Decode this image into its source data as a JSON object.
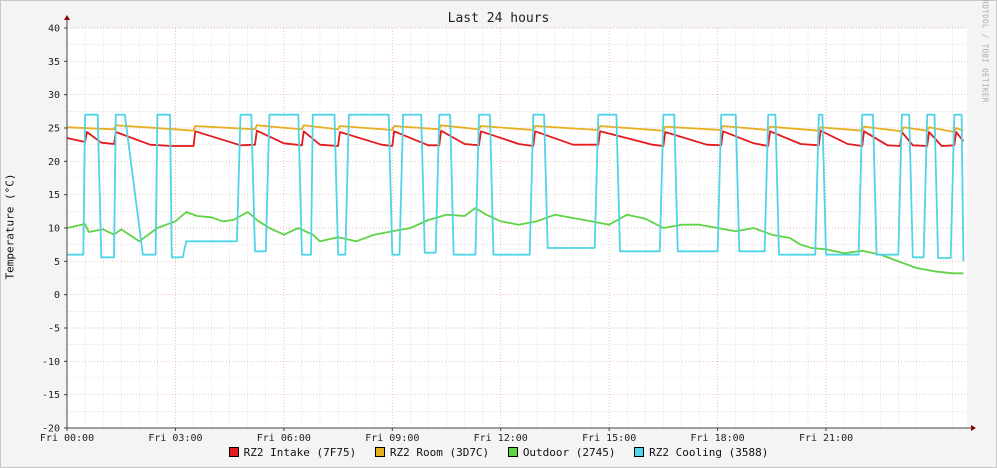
{
  "window": {
    "title": "Last 24 hours",
    "watermark": "RRDTOOL / TOBI OETIKER"
  },
  "chart_data": {
    "type": "line",
    "title": "Last 24 hours",
    "ylabel": "Temperature (°C)",
    "xlabel": "",
    "ylim": [
      -20,
      40
    ],
    "yticks": [
      -20,
      -15,
      -10,
      -5,
      0,
      5,
      10,
      15,
      20,
      25,
      30,
      35,
      40
    ],
    "xlim_hours": [
      0,
      24.9
    ],
    "xticks": [
      {
        "h": 0,
        "label": "Fri 00:00"
      },
      {
        "h": 3,
        "label": "Fri 03:00"
      },
      {
        "h": 6,
        "label": "Fri 06:00"
      },
      {
        "h": 9,
        "label": "Fri 09:00"
      },
      {
        "h": 12,
        "label": "Fri 12:00"
      },
      {
        "h": 15,
        "label": "Fri 15:00"
      },
      {
        "h": 18,
        "label": "Fri 18:00"
      },
      {
        "h": 21,
        "label": "Fri 21:00"
      }
    ],
    "grid": true,
    "legend_position": "bottom",
    "series": [
      {
        "name": "RZ2 Intake (7F75)",
        "color": "#e41a1c",
        "x": [
          0,
          0.5,
          0.55,
          0.95,
          1.3,
          1.35,
          2.3,
          2.9,
          3.2,
          3.5,
          3.55,
          4.8,
          5.2,
          5.25,
          6,
          6.5,
          6.55,
          7,
          7.5,
          7.55,
          8.7,
          9,
          9.05,
          10,
          10.3,
          10.35,
          11,
          11.4,
          11.45,
          12.5,
          12.9,
          12.95,
          14,
          14.7,
          14.75,
          16.2,
          16.5,
          16.55,
          17.7,
          18.1,
          18.15,
          19,
          19.4,
          19.45,
          20.3,
          20.8,
          20.85,
          21.6,
          22,
          22.05,
          22.7,
          23.05,
          23.1,
          23.4,
          23.8,
          23.85,
          24.2,
          24.55,
          24.6,
          24.8
        ],
        "y": [
          23.5,
          22.9,
          24.4,
          22.8,
          22.6,
          24.4,
          22.5,
          22.3,
          22.3,
          22.3,
          24.5,
          22.4,
          22.5,
          24.6,
          22.7,
          22.4,
          24.5,
          22.5,
          22.3,
          24.4,
          22.5,
          22.3,
          24.5,
          22.4,
          22.4,
          24.6,
          22.6,
          22.4,
          24.5,
          22.6,
          22.3,
          24.5,
          22.5,
          22.5,
          24.5,
          22.5,
          22.3,
          24.4,
          22.5,
          22.4,
          24.5,
          22.7,
          22.3,
          24.5,
          22.6,
          22.4,
          24.6,
          22.6,
          22.3,
          24.5,
          22.4,
          22.3,
          24.4,
          22.4,
          22.3,
          24.4,
          22.3,
          22.4,
          24.4,
          23.0
        ]
      },
      {
        "name": "RZ2 Room (3D7C)",
        "color": "#e6b020",
        "x": [
          0,
          1.3,
          1.35,
          3,
          3.5,
          3.55,
          5.2,
          5.25,
          6.5,
          6.55,
          7.5,
          7.55,
          9,
          9.05,
          10.3,
          10.35,
          11.4,
          11.45,
          12.9,
          12.95,
          14.7,
          14.75,
          16.5,
          16.55,
          18.1,
          18.15,
          19.4,
          19.45,
          20.8,
          20.85,
          22,
          22.05,
          23.1,
          23.15,
          23.8,
          23.85,
          24.55,
          24.6,
          24.8
        ],
        "y": [
          25.1,
          24.8,
          25.4,
          24.8,
          24.6,
          25.3,
          24.8,
          25.4,
          24.8,
          25.4,
          24.8,
          25.3,
          24.7,
          25.3,
          24.8,
          25.4,
          24.8,
          25.3,
          24.7,
          25.3,
          24.7,
          25.3,
          24.6,
          25.2,
          24.7,
          25.3,
          24.7,
          25.2,
          24.6,
          25.1,
          24.6,
          25.2,
          24.5,
          25.1,
          24.6,
          25.1,
          24.4,
          25.0,
          24.6
        ]
      },
      {
        "name": "Outdoor (2745)",
        "color": "#5fd346",
        "x": [
          0,
          0.5,
          0.6,
          1,
          1.3,
          1.5,
          2,
          2.5,
          3,
          3.3,
          3.6,
          4,
          4.3,
          4.6,
          5,
          5.3,
          5.6,
          6,
          6.4,
          6.8,
          7,
          7.5,
          8,
          8.5,
          9,
          9.5,
          10,
          10.5,
          11,
          11.3,
          11.6,
          12,
          12.5,
          13,
          13.5,
          14,
          14.5,
          15,
          15.5,
          16,
          16.5,
          17,
          17.5,
          18,
          18.5,
          19,
          19.5,
          20,
          20.3,
          20.6,
          21,
          21.5,
          22,
          22.5,
          23,
          23.5,
          24,
          24.5,
          24.8
        ],
        "y": [
          10.0,
          10.6,
          9.4,
          9.8,
          9.0,
          9.8,
          8.0,
          10.0,
          11.0,
          12.4,
          11.8,
          11.6,
          11.0,
          11.2,
          12.4,
          11.0,
          10.0,
          9.0,
          10.0,
          9.0,
          8.0,
          8.6,
          8.0,
          9.0,
          9.5,
          10.0,
          11.2,
          12.0,
          11.8,
          13.0,
          12.0,
          11.0,
          10.5,
          11.0,
          12.0,
          11.5,
          11.0,
          10.5,
          12.0,
          11.4,
          10.0,
          10.5,
          10.5,
          10.0,
          9.5,
          10.0,
          9.0,
          8.5,
          7.5,
          7.0,
          6.8,
          6.2,
          6.6,
          6.0,
          5.0,
          4.0,
          3.5,
          3.2,
          3.2
        ]
      },
      {
        "name": "RZ2 Cooling (3588)",
        "color": "#4fd4e8",
        "x": [
          0,
          0.45,
          0.5,
          0.85,
          0.95,
          1.3,
          1.35,
          1.6,
          2.1,
          2.45,
          2.5,
          2.85,
          2.9,
          3.2,
          3.3,
          4.7,
          4.8,
          5.1,
          5.2,
          5.5,
          5.6,
          6.4,
          6.5,
          6.75,
          6.8,
          7.4,
          7.5,
          7.7,
          7.8,
          8.9,
          9,
          9.2,
          9.3,
          9.8,
          9.9,
          10.2,
          10.3,
          10.6,
          10.7,
          11.3,
          11.4,
          11.7,
          11.8,
          12.8,
          12.9,
          13.2,
          13.3,
          14.6,
          14.7,
          15.2,
          15.3,
          16.4,
          16.5,
          16.8,
          16.9,
          18.0,
          18.1,
          18.5,
          18.6,
          19.3,
          19.4,
          19.6,
          19.7,
          20.7,
          20.8,
          20.9,
          21.0,
          21.9,
          22.0,
          22.3,
          22.4,
          23.0,
          23.1,
          23.3,
          23.4,
          23.7,
          23.8,
          24.0,
          24.1,
          24.45,
          24.55,
          24.75,
          24.8
        ],
        "y": [
          6.0,
          6.0,
          27.0,
          27.0,
          5.6,
          5.6,
          27.0,
          27.0,
          6.0,
          6.0,
          27.0,
          27.0,
          5.6,
          5.6,
          8.0,
          8.0,
          27.0,
          27.0,
          6.5,
          6.5,
          27.0,
          27.0,
          6.0,
          6.0,
          27.0,
          27.0,
          6.0,
          6.0,
          27.0,
          27.0,
          6.0,
          6.0,
          27.0,
          27.0,
          6.3,
          6.3,
          27.0,
          27.0,
          6.0,
          6.0,
          27.0,
          27.0,
          6.0,
          6.0,
          27.0,
          27.0,
          7.0,
          7.0,
          27.0,
          27.0,
          6.5,
          6.5,
          27.0,
          27.0,
          6.5,
          6.5,
          27.0,
          27.0,
          6.5,
          6.5,
          27.0,
          27.0,
          6.0,
          6.0,
          27.0,
          27.0,
          6.0,
          6.0,
          27.0,
          27.0,
          6.0,
          6.0,
          27.0,
          27.0,
          5.6,
          5.6,
          27.0,
          27.0,
          5.5,
          5.5,
          27.0,
          27.0,
          5.0
        ]
      }
    ]
  }
}
